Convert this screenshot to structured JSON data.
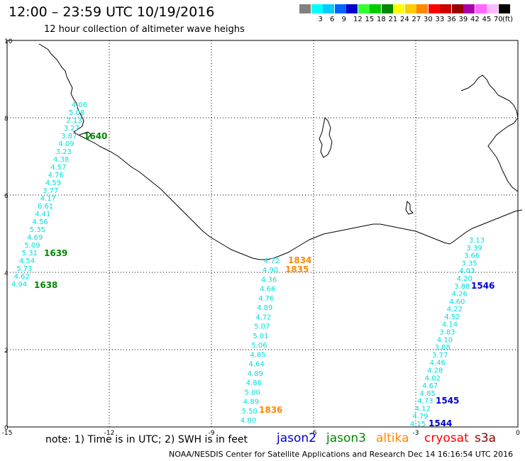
{
  "header": {
    "title": "12:00 – 23:59 UTC 10/19/2016",
    "subtitle": "12 hour collection of altimeter wave heighs"
  },
  "legend": {
    "unit": "(ft)",
    "items": [
      {
        "label": "",
        "color": "#808080"
      },
      {
        "label": "3",
        "color": "#00ffff"
      },
      {
        "label": "6",
        "color": "#00ccff"
      },
      {
        "label": "9",
        "color": "#0066ff"
      },
      {
        "label": "12",
        "color": "#0000cc"
      },
      {
        "label": "15",
        "color": "#33ff33"
      },
      {
        "label": "18",
        "color": "#00cc00"
      },
      {
        "label": "21",
        "color": "#008800"
      },
      {
        "label": "24",
        "color": "#ffff00"
      },
      {
        "label": "27",
        "color": "#ffcc00"
      },
      {
        "label": "30",
        "color": "#ff8800"
      },
      {
        "label": "33",
        "color": "#ff0000"
      },
      {
        "label": "36",
        "color": "#cc0000"
      },
      {
        "label": "39",
        "color": "#990000"
      },
      {
        "label": "42",
        "color": "#aa00aa"
      },
      {
        "label": "45",
        "color": "#ff66ff"
      },
      {
        "label": "70",
        "color": "#ffbbff"
      },
      {
        "label": "",
        "color": "#000000"
      }
    ]
  },
  "axes": {
    "x_ticks": [
      "-15",
      "-12",
      "-9",
      "-6",
      "-3",
      "0"
    ],
    "y_ticks": [
      "0",
      "2",
      "4",
      "6",
      "8",
      "10"
    ],
    "xlim": [
      -15,
      0
    ],
    "ylim": [
      0,
      10
    ]
  },
  "tracks": [
    {
      "satellite": "jason3",
      "values_color": "#00dddd",
      "values": [
        "4.06",
        "5.08",
        "2.13",
        "3.27",
        "3.87",
        "4.09",
        "3.23",
        "4.38",
        "4.57",
        "4.76",
        "4.59",
        "3.77",
        "4.17",
        "6.61",
        "4.41",
        "4.56",
        "5.35",
        "4.69",
        "5.09",
        "5.31",
        "4.54",
        "5.73",
        "4.62",
        "4.94"
      ],
      "time_labels": [
        {
          "text": "1640",
          "color": "#008800"
        },
        {
          "text": "1639",
          "color": "#008800"
        },
        {
          "text": "1638",
          "color": "#008800"
        }
      ]
    },
    {
      "satellite": "altika",
      "values_color": "#00dddd",
      "values": [
        "4.72",
        "4.90",
        "4.36",
        "4.66",
        "4.76",
        "4.89",
        "4.72",
        "5.07",
        "5.01",
        "5.06",
        "4.85",
        "4.64",
        "4.89",
        "4.86",
        "5.00",
        "4.89",
        "5.50",
        "4.80"
      ],
      "time_labels": [
        {
          "text": "1834",
          "color": "#ff8800"
        },
        {
          "text": "1835",
          "color": "#ff8800"
        },
        {
          "text": "1836",
          "color": "#ff8800"
        }
      ]
    },
    {
      "satellite": "jason2",
      "values_color": "#00dddd",
      "values": [
        "3.13",
        "3.39",
        "3.66",
        "3.35",
        "4.03",
        "4.20",
        "3.88",
        "4.26",
        "4.60",
        "4.22",
        "4.52",
        "4.14",
        "3.83",
        "4.10",
        "3.88",
        "3.77",
        "4.46",
        "4.28",
        "4.02",
        "4.67",
        "4.85",
        "4.73",
        "4.12",
        "4.79",
        "4.15"
      ],
      "time_labels": [
        {
          "text": "1546",
          "color": "#0000cc"
        },
        {
          "text": "1545",
          "color": "#0000cc"
        },
        {
          "text": "1544",
          "color": "#0000cc"
        }
      ]
    }
  ],
  "notes": {
    "note": "note:  1) Time is in UTC;  2) SWH is in feet",
    "footer": "NOAA/NESDIS Center for Satellite Applications and Research     Dec 14 16:16:54 UTC 2016"
  },
  "satellite_legend": [
    {
      "name": "jason2",
      "color": "#0000cc"
    },
    {
      "name": "jason3",
      "color": "#008800"
    },
    {
      "name": "altika",
      "color": "#ff8800"
    },
    {
      "name": "cryosat",
      "color": "#ff0000"
    },
    {
      "name": "s3a",
      "color": "#880000"
    }
  ]
}
